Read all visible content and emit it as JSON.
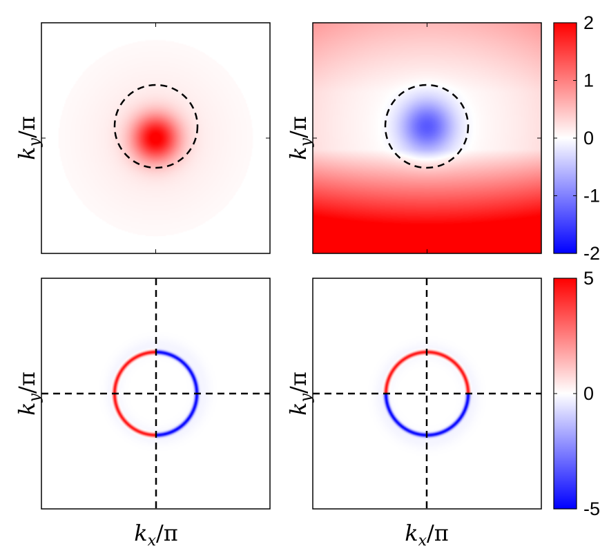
{
  "chart_data": [
    {
      "type": "heatmap",
      "panel": "top-left",
      "ylabel": "k_y/π",
      "xlabel": "",
      "colormap": "blue-white-red",
      "clim": [
        -2,
        2
      ],
      "field": "gaussian_peak",
      "peak_value": 1.9,
      "peak_center": [
        0,
        0
      ],
      "overlay": "dashed-circle",
      "fermi_circle_radius": 0.36
    },
    {
      "type": "heatmap",
      "panel": "top-right",
      "ylabel": "k_y/π",
      "xlabel": "",
      "colormap": "blue-white-red",
      "clim": [
        -2,
        2
      ],
      "field": "bowl",
      "center_value": -1.3,
      "bottom_edge_value": 1.95,
      "top_edge_value": 0.35,
      "overlay": "dashed-circle",
      "fermi_circle_radius": 0.36
    },
    {
      "type": "heatmap",
      "panel": "bottom-left",
      "ylabel": "k_y/π",
      "xlabel": "k_x/π",
      "colormap": "blue-white-red",
      "clim": [
        -5,
        5
      ],
      "field": "ring_sign_by_x",
      "ring_radius": 0.36,
      "positive_side": "left",
      "negative_side": "right",
      "ring_value": 5,
      "overlay": "dashed-axes"
    },
    {
      "type": "heatmap",
      "panel": "bottom-right",
      "ylabel": "k_y/π",
      "xlabel": "k_x/π",
      "colormap": "blue-white-red",
      "clim": [
        -5,
        5
      ],
      "field": "ring_sign_by_y",
      "ring_radius": 0.36,
      "positive_side": "top",
      "negative_side": "bottom",
      "ring_value": 5,
      "overlay": "dashed-axes"
    }
  ],
  "colorbars": [
    {
      "ticks": [
        "2",
        "1",
        "0",
        "-1",
        "-2"
      ],
      "values": [
        2,
        1,
        0,
        -1,
        -2
      ]
    },
    {
      "ticks": [
        "5",
        "0",
        "-5"
      ],
      "values": [
        5,
        0,
        -5
      ]
    }
  ],
  "labels": {
    "ky": "k",
    "ky_sub": "y",
    "kx": "k",
    "kx_sub": "x",
    "over_pi": "/π"
  }
}
